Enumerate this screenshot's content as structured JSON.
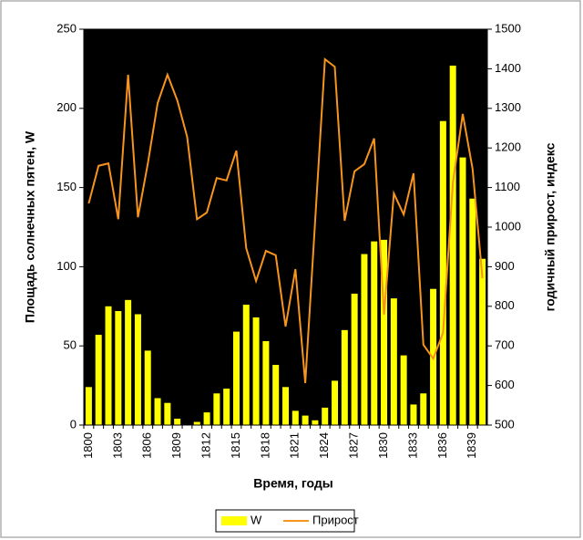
{
  "chart_data": {
    "type": "bar",
    "x_label": "Время, годы",
    "y_label": "Площадь солнечных пятен, W",
    "y2_label": "годичный прирост, индекс",
    "categories": [
      "1800",
      null,
      null,
      "1803",
      null,
      null,
      "1806",
      null,
      null,
      "1809",
      null,
      null,
      "1812",
      null,
      null,
      "1815",
      null,
      null,
      "1818",
      null,
      null,
      "1821",
      null,
      null,
      "1824",
      null,
      null,
      "1827",
      null,
      null,
      "1830",
      null,
      null,
      "1833",
      null,
      null,
      "1836",
      null,
      null,
      "1839",
      null
    ],
    "series": [
      {
        "name": "W",
        "type": "bar",
        "color": "#ffff00",
        "values": [
          24,
          57,
          75,
          72,
          79,
          70,
          47,
          17,
          14,
          4,
          0,
          2,
          8,
          20,
          23,
          59,
          76,
          68,
          53,
          38,
          24,
          9,
          6,
          3,
          11,
          28,
          60,
          83,
          108,
          116,
          117,
          80,
          44,
          13,
          20,
          86,
          192,
          227,
          169,
          143,
          105
        ]
      },
      {
        "name": "Прирост",
        "type": "line",
        "axis": "y2",
        "color": "#f7941d",
        "values": [
          1060,
          1155,
          1161,
          1020,
          1385,
          1025,
          1160,
          1313,
          1385,
          1320,
          1228,
          1020,
          1037,
          1124,
          1118,
          1193,
          947,
          864,
          940,
          929,
          749,
          894,
          606,
          1014,
          1424,
          1405,
          1016,
          1141,
          1159,
          1224,
          779,
          1085,
          1032,
          1136,
          703,
          668,
          733,
          1113,
          1286,
          1147,
          871
        ]
      }
    ],
    "ylim": [
      0,
      250
    ],
    "yticks": [
      0,
      50,
      100,
      150,
      200,
      250
    ],
    "y2lim": [
      500,
      1500
    ],
    "y2ticks": [
      500,
      600,
      700,
      800,
      900,
      1000,
      1100,
      1200,
      1300,
      1400,
      1500
    ],
    "plot_background": "#000000"
  }
}
